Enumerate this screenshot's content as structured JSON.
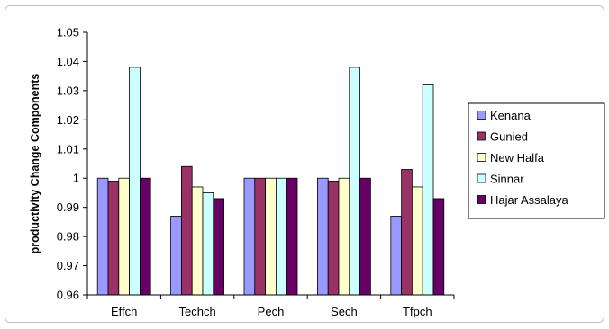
{
  "chart_data": {
    "type": "bar",
    "title": "",
    "xlabel": "",
    "ylabel": "productivity Change Components",
    "categories": [
      "Effch",
      "Techch",
      "Pech",
      "Sech",
      "Tfpch"
    ],
    "ylim": [
      0.96,
      1.05
    ],
    "yticks": [
      "0.96",
      "0.97",
      "0.98",
      "0.99",
      "1",
      "1.01",
      "1.02",
      "1.03",
      "1.04",
      "1.05"
    ],
    "grid": false,
    "legend_position": "right",
    "series": [
      {
        "name": "Kenana",
        "color": "#9999ff",
        "values": [
          1.0,
          0.987,
          1.0,
          1.0,
          0.987
        ]
      },
      {
        "name": "Gunied",
        "color": "#993366",
        "values": [
          0.999,
          1.004,
          1.0,
          0.999,
          1.003
        ]
      },
      {
        "name": "New Halfa",
        "color": "#ffffcc",
        "values": [
          1.0,
          0.997,
          1.0,
          1.0,
          0.997
        ]
      },
      {
        "name": "Sinnar",
        "color": "#ccffff",
        "values": [
          1.038,
          0.995,
          1.0,
          1.038,
          1.032
        ]
      },
      {
        "name": "Hajar Assalaya",
        "color": "#660066",
        "values": [
          1.0,
          0.993,
          1.0,
          1.0,
          0.993
        ]
      }
    ]
  }
}
